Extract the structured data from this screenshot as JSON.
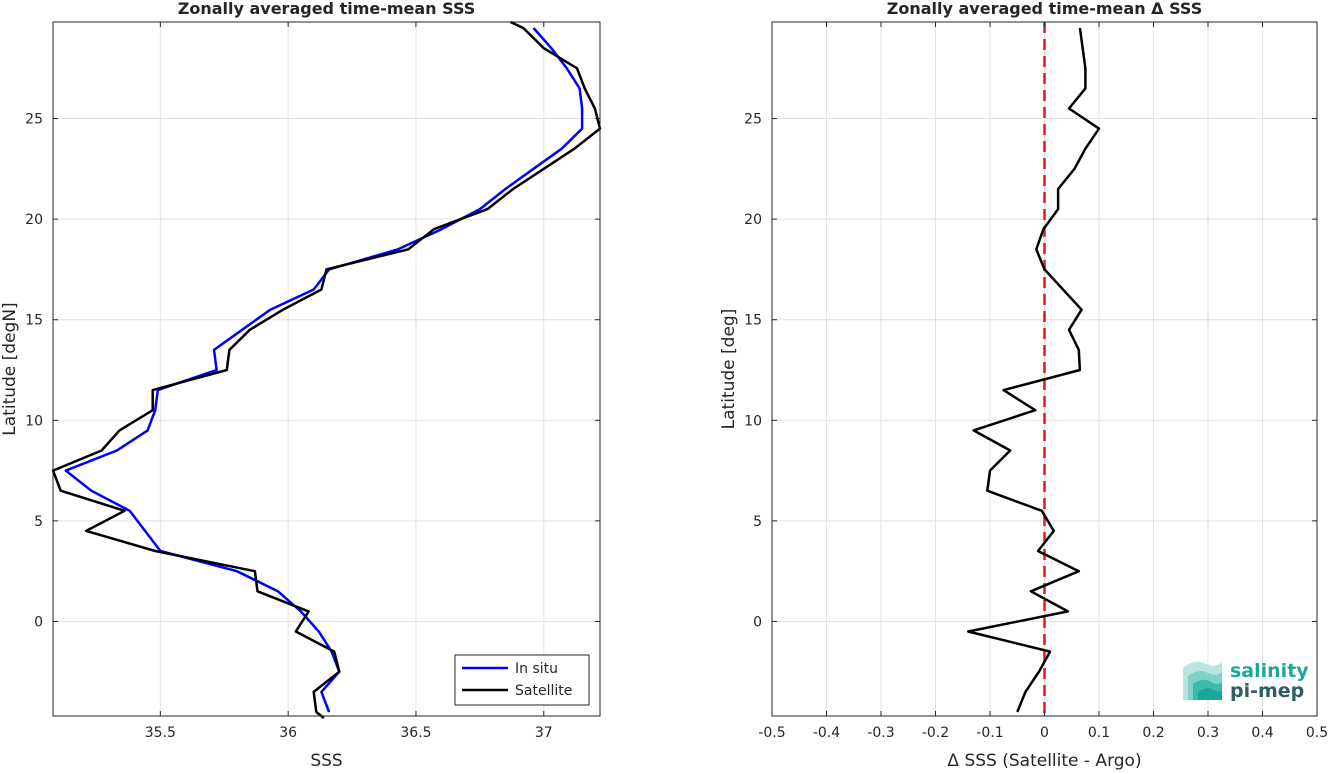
{
  "chart_data": [
    {
      "type": "line",
      "title": "Zonally averaged time-mean SSS",
      "xlabel": "SSS",
      "ylabel": "Latitude [degN]",
      "xlim": [
        35.08,
        37.22
      ],
      "ylim": [
        -4.7,
        29.8
      ],
      "xticks": [
        35.5,
        36,
        36.5,
        37
      ],
      "xtick_labels": [
        "35.5",
        "36",
        "36.5",
        "37"
      ],
      "yticks": [
        0,
        5,
        10,
        15,
        20,
        25
      ],
      "ytick_labels": [
        "0",
        "5",
        "10",
        "15",
        "20",
        "25"
      ],
      "grid": true,
      "legend": "bottom-right",
      "series": [
        {
          "name": "In situ",
          "color": "#0000ff",
          "points": [
            [
              36.16,
              -4.5
            ],
            [
              36.13,
              -3.5
            ],
            [
              36.2,
              -2.5
            ],
            [
              36.17,
              -1.5
            ],
            [
              36.12,
              -0.5
            ],
            [
              36.05,
              0.5
            ],
            [
              35.96,
              1.5
            ],
            [
              35.8,
              2.5
            ],
            [
              35.5,
              3.5
            ],
            [
              35.38,
              5.5
            ],
            [
              35.23,
              6.5
            ],
            [
              35.13,
              7.5
            ],
            [
              35.33,
              8.5
            ],
            [
              35.45,
              9.5
            ],
            [
              35.48,
              10.5
            ],
            [
              35.49,
              11.5
            ],
            [
              35.72,
              12.5
            ],
            [
              35.71,
              13.5
            ],
            [
              35.82,
              14.5
            ],
            [
              35.93,
              15.5
            ],
            [
              36.1,
              16.5
            ],
            [
              36.16,
              17.5
            ],
            [
              36.43,
              18.5
            ],
            [
              36.6,
              19.5
            ],
            [
              36.75,
              20.5
            ],
            [
              36.85,
              21.5
            ],
            [
              36.96,
              22.5
            ],
            [
              37.07,
              23.5
            ],
            [
              37.15,
              24.5
            ],
            [
              37.15,
              25.5
            ],
            [
              37.14,
              26.5
            ],
            [
              37.09,
              27.5
            ],
            [
              37.03,
              28.5
            ],
            [
              36.96,
              29.5
            ]
          ]
        },
        {
          "name": "Satellite",
          "color": "#000000",
          "points": [
            [
              36.14,
              -4.8
            ],
            [
              36.11,
              -4.5
            ],
            [
              36.1,
              -3.5
            ],
            [
              36.2,
              -2.5
            ],
            [
              36.18,
              -1.5
            ],
            [
              36.03,
              -0.5
            ],
            [
              36.08,
              0.5
            ],
            [
              35.88,
              1.5
            ],
            [
              35.87,
              2.5
            ],
            [
              35.48,
              3.5
            ],
            [
              35.21,
              4.5
            ],
            [
              35.36,
              5.5
            ],
            [
              35.11,
              6.5
            ],
            [
              35.08,
              7.5
            ],
            [
              35.27,
              8.5
            ],
            [
              35.34,
              9.5
            ],
            [
              35.47,
              10.5
            ],
            [
              35.47,
              11.5
            ],
            [
              35.76,
              12.5
            ],
            [
              35.77,
              13.5
            ],
            [
              35.85,
              14.5
            ],
            [
              35.98,
              15.5
            ],
            [
              36.13,
              16.5
            ],
            [
              36.15,
              17.5
            ],
            [
              36.47,
              18.5
            ],
            [
              36.57,
              19.5
            ],
            [
              36.78,
              20.5
            ],
            [
              36.88,
              21.5
            ],
            [
              37.0,
              22.5
            ],
            [
              37.12,
              23.5
            ],
            [
              37.22,
              24.5
            ],
            [
              37.2,
              25.5
            ],
            [
              37.16,
              26.5
            ],
            [
              37.13,
              27.5
            ],
            [
              37.0,
              28.5
            ],
            [
              36.92,
              29.5
            ],
            [
              36.87,
              29.8
            ]
          ]
        }
      ]
    },
    {
      "type": "line",
      "title": "Zonally averaged time-mean Δ SSS",
      "xlabel": "Δ SSS (Satellite - Argo)",
      "ylabel": "Latitude [deg]",
      "xlim": [
        -0.5,
        0.5
      ],
      "ylim": [
        -4.7,
        29.8
      ],
      "xticks": [
        -0.5,
        -0.4,
        -0.3,
        -0.2,
        -0.1,
        0,
        0.1,
        0.2,
        0.3,
        0.4,
        0.5
      ],
      "xtick_labels": [
        "-0.5",
        "-0.4",
        "-0.3",
        "-0.2",
        "-0.1",
        "0",
        "0.1",
        "0.2",
        "0.3",
        "0.4",
        "0.5"
      ],
      "yticks": [
        0,
        5,
        10,
        15,
        20,
        25
      ],
      "ytick_labels": [
        "0",
        "5",
        "10",
        "15",
        "20",
        "25"
      ],
      "grid": true,
      "reference_line": {
        "x": 0,
        "color": "#e31a1c",
        "style": "dashed"
      },
      "series": [
        {
          "color": "#000000",
          "points": [
            [
              -0.05,
              -4.5
            ],
            [
              -0.035,
              -3.5
            ],
            [
              -0.01,
              -2.5
            ],
            [
              0.01,
              -1.5
            ],
            [
              -0.14,
              -0.5
            ],
            [
              0.043,
              0.5
            ],
            [
              -0.025,
              1.5
            ],
            [
              0.063,
              2.5
            ],
            [
              -0.012,
              3.5
            ],
            [
              0.017,
              4.5
            ],
            [
              -0.005,
              5.5
            ],
            [
              -0.105,
              6.5
            ],
            [
              -0.1,
              7.5
            ],
            [
              -0.063,
              8.5
            ],
            [
              -0.13,
              9.5
            ],
            [
              -0.017,
              10.5
            ],
            [
              -0.075,
              11.5
            ],
            [
              0.065,
              12.5
            ],
            [
              0.063,
              13.5
            ],
            [
              0.045,
              14.5
            ],
            [
              0.068,
              15.5
            ],
            [
              0,
              17.5
            ],
            [
              -0.015,
              18.5
            ],
            [
              -0.002,
              19.5
            ],
            [
              0.025,
              20.5
            ],
            [
              0.025,
              21.5
            ],
            [
              0.055,
              22.5
            ],
            [
              0.075,
              23.5
            ],
            [
              0.1,
              24.5
            ],
            [
              0.045,
              25.5
            ],
            [
              0.075,
              26.5
            ],
            [
              0.075,
              27.5
            ],
            [
              0.065,
              29.5
            ]
          ]
        }
      ]
    }
  ],
  "logo": {
    "line1": "salinity",
    "line2": "pi-mep",
    "color": "#1aa79a",
    "dark_color": "#2e5e5e"
  }
}
